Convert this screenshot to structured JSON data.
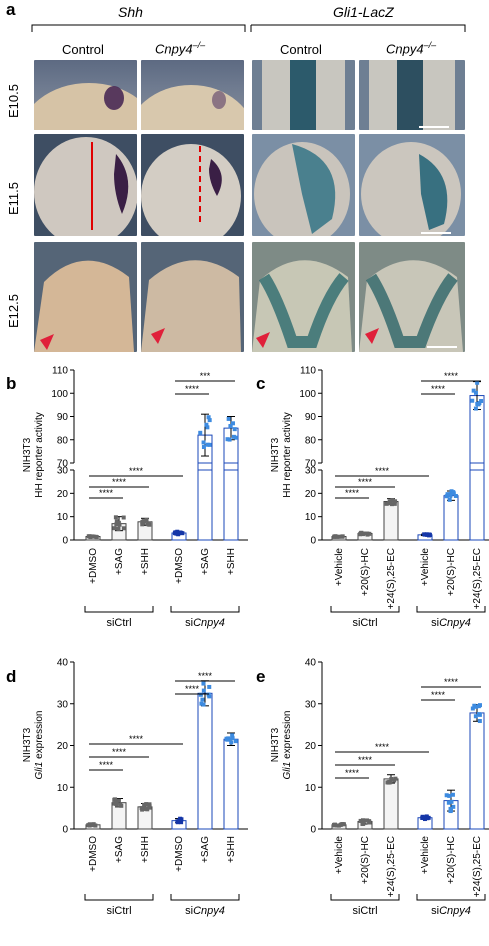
{
  "panel_a": {
    "label": "a",
    "gene_left": "Shh",
    "gene_right": "Gli1-LacZ",
    "col_labels": [
      "Control",
      "Cnpy4",
      "Control",
      "Cnpy4"
    ],
    "col_sup": [
      "",
      "–/–",
      "",
      "–/–"
    ],
    "row_labels": [
      "E10.5",
      "E11.5",
      "E12.5"
    ]
  },
  "chart_data": [
    {
      "panel": "b",
      "type": "bar",
      "ylabel_line1": "NIH3T3",
      "ylabel_line2": "HH reporter activity",
      "categories": [
        "+DMSO",
        "+SAG",
        "+SHH",
        "+DMSO",
        "+SAG",
        "+SHH"
      ],
      "groups": [
        {
          "name": "siCtrl",
          "span": [
            0,
            2
          ]
        },
        {
          "name": "siCnpy4",
          "prefix": "si",
          "italic": "Cnpy4",
          "span": [
            3,
            5
          ]
        }
      ],
      "values": [
        1.5,
        7,
        7.8,
        3,
        82,
        85
      ],
      "errors": [
        0.3,
        3,
        1.5,
        0.6,
        9,
        5
      ],
      "axis_break": {
        "lower": [
          0,
          30
        ],
        "upper": [
          70,
          110
        ]
      },
      "yticks_lower": [
        0,
        10,
        20,
        30
      ],
      "yticks_upper": [
        70,
        80,
        90,
        100,
        110
      ],
      "significance": [
        "****",
        "****",
        "****",
        "****",
        "***"
      ]
    },
    {
      "panel": "c",
      "type": "bar",
      "ylabel_line1": "NIH3T3",
      "ylabel_line2": "HH reporter activity",
      "categories": [
        "+Vehicle",
        "+20(S)-HC",
        "+24(S),25-EC",
        "+Vehicle",
        "+20(S)-HC",
        "+24(S),25-EC"
      ],
      "groups": [
        {
          "name": "siCtrl",
          "span": [
            0,
            2
          ]
        },
        {
          "name": "siCnpy4",
          "prefix": "si",
          "italic": "Cnpy4",
          "span": [
            3,
            5
          ]
        }
      ],
      "values": [
        1.5,
        2.8,
        16.5,
        2.2,
        19,
        99
      ],
      "errors": [
        0.2,
        0.5,
        1.2,
        0.3,
        2,
        6
      ],
      "axis_break": {
        "lower": [
          0,
          30
        ],
        "upper": [
          70,
          110
        ]
      },
      "yticks_lower": [
        0,
        10,
        20,
        30
      ],
      "yticks_upper": [
        70,
        80,
        90,
        100,
        110
      ],
      "significance": [
        "****",
        "****",
        "****",
        "****",
        "****"
      ]
    },
    {
      "panel": "d",
      "type": "bar",
      "ylabel_line1": "NIH3T3",
      "ylabel_line2_italic": "Gli1",
      "ylabel_line2_rest": " expression",
      "categories": [
        "+DMSO",
        "+SAG",
        "+SHH",
        "+DMSO",
        "+SAG",
        "+SHH"
      ],
      "groups": [
        {
          "name": "siCtrl",
          "span": [
            0,
            2
          ]
        },
        {
          "name": "siCnpy4",
          "prefix": "si",
          "italic": "Cnpy4",
          "span": [
            3,
            5
          ]
        }
      ],
      "values": [
        1,
        6.3,
        5.3,
        2,
        32.5,
        21.5
      ],
      "errors": [
        0.2,
        1,
        0.8,
        0.5,
        3,
        1.5
      ],
      "ylim": [
        0,
        40
      ],
      "yticks": [
        0,
        10,
        20,
        30,
        40
      ],
      "significance": [
        "****",
        "****",
        "****",
        "****",
        "****"
      ]
    },
    {
      "panel": "e",
      "type": "bar",
      "ylabel_line1": "NIH3T3",
      "ylabel_line2_italic": "Gli1",
      "ylabel_line2_rest": " expression",
      "categories": [
        "+Vehicle",
        "+20(S)-HC",
        "+24(S),25-EC",
        "+Vehicle",
        "+20(S)-HC",
        "+24(S),25-EC"
      ],
      "groups": [
        {
          "name": "siCtrl",
          "span": [
            0,
            2
          ]
        },
        {
          "name": "siCnpy4",
          "prefix": "si",
          "italic": "Cnpy4",
          "span": [
            3,
            5
          ]
        }
      ],
      "values": [
        1,
        1.8,
        12,
        2.7,
        6.8,
        27.8
      ],
      "errors": [
        0.2,
        0.6,
        1,
        0.4,
        2.5,
        2
      ],
      "ylim": [
        0,
        40
      ],
      "yticks": [
        0,
        10,
        20,
        30,
        40
      ],
      "significance": [
        "****",
        "****",
        "****",
        "****",
        "****"
      ]
    }
  ],
  "colors": {
    "ctrl_fill": "#f4f4f4",
    "ctrl_stroke": "#444444",
    "ctrl_dot": "#666666",
    "cnpy4_stroke": "#1a47b8",
    "cnpy4_dot": "#3d8be0",
    "cnpy4_dot_dark": "#1536a8"
  }
}
